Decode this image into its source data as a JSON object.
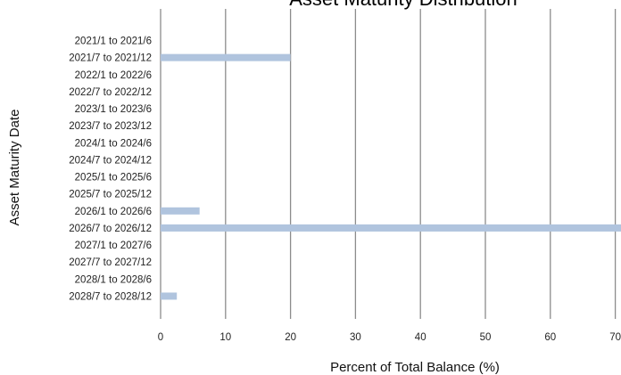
{
  "chart_data": {
    "type": "bar",
    "orientation": "horizontal",
    "title": "Asset Maturity Distribution",
    "xlabel": "Percent of Total Balance (%)",
    "ylabel": "Asset Maturity Date",
    "categories": [
      "2021/1 to 2021/6",
      "2021/7 to 2021/12",
      "2022/1 to 2022/6",
      "2022/7 to 2022/12",
      "2023/1 to 2023/6",
      "2023/7 to 2023/12",
      "2024/1 to 2024/6",
      "2024/7 to 2024/12",
      "2025/1 to 2025/6",
      "2025/7 to 2025/12",
      "2026/1 to 2026/6",
      "2026/7 to 2026/12",
      "2027/1 to 2027/6",
      "2027/7 to 2027/12",
      "2028/1 to 2028/6",
      "2028/7 to 2028/12"
    ],
    "values": [
      0,
      20,
      0,
      0,
      0,
      0,
      0,
      0,
      0,
      0,
      6,
      71.5,
      0,
      0,
      0,
      2.5
    ],
    "xticks": [
      0,
      10,
      20,
      30,
      40,
      50,
      60,
      70
    ],
    "xlim": [
      0,
      71
    ],
    "grid": "vertical",
    "legend": "none",
    "bar_color": "#b0c4de",
    "grid_color": "#8c8c8c"
  }
}
